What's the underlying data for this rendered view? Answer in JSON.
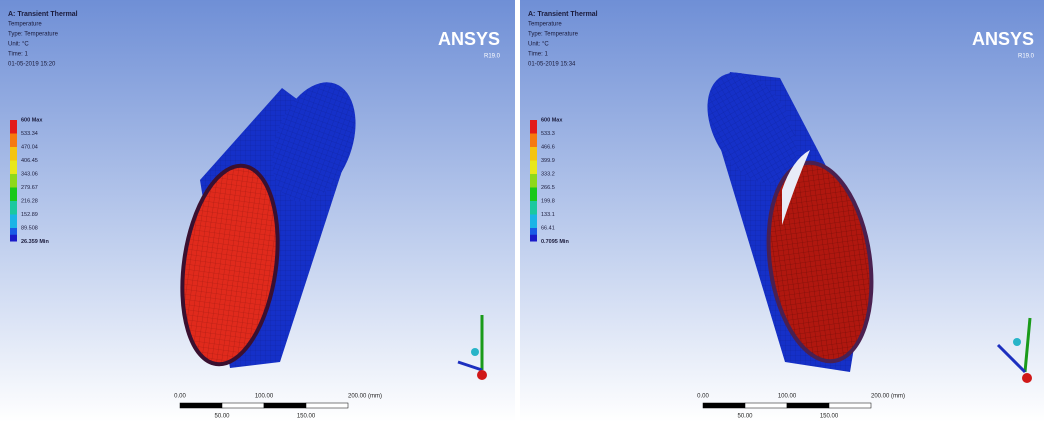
{
  "panels": [
    {
      "header": {
        "lines": [
          "A: Transient Thermal",
          "Temperature",
          "Type: Temperature",
          "Unit: °C",
          "Time: 1",
          "01-05-2019 15:20"
        ]
      },
      "legend": {
        "labels": [
          "600 Max",
          "533.34",
          "470.04",
          "406.45",
          "343.06",
          "279.67",
          "216.28",
          "152.89",
          "89.508",
          "26.359 Min"
        ]
      },
      "logo": {
        "name": "ANSYS",
        "version": "R19.0"
      },
      "scale": {
        "top": [
          "0.00",
          "100.00",
          "200.00 (mm)"
        ],
        "bottom": [
          "50.00",
          "150.00"
        ]
      }
    },
    {
      "header": {
        "lines": [
          "A: Transient Thermal",
          "Temperature",
          "Type: Temperature",
          "Unit: °C",
          "Time: 1",
          "01-05-2019 15:34"
        ]
      },
      "legend": {
        "labels": [
          "600 Max",
          "533.3",
          "466.6",
          "399.9",
          "333.2",
          "266.5",
          "199.8",
          "133.1",
          "66.41",
          "0.7095 Min"
        ]
      },
      "logo": {
        "name": "ANSYS",
        "version": "R19.0"
      },
      "scale": {
        "top": [
          "0.00",
          "100.00",
          "200.00 (mm)"
        ],
        "bottom": [
          "50.00",
          "150.00"
        ]
      }
    }
  ]
}
